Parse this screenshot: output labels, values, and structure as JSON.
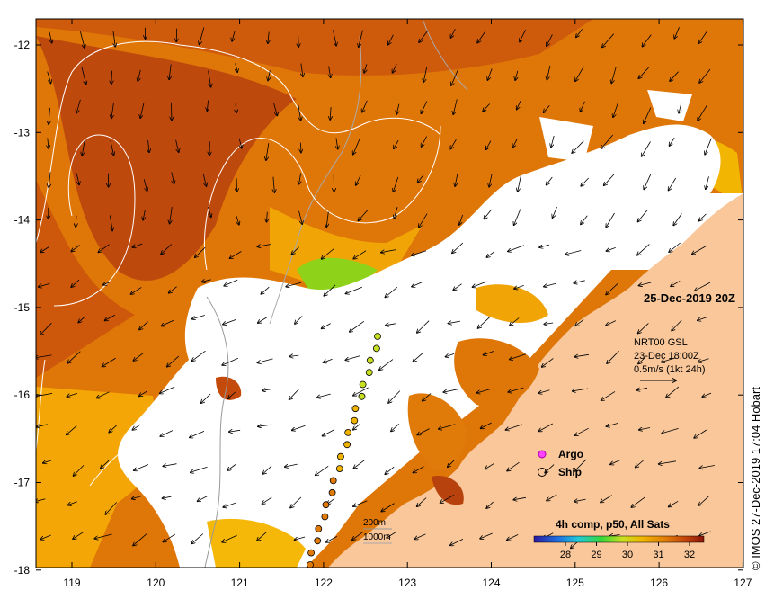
{
  "map": {
    "date_label": "25-Dec-2019 20Z",
    "current_info": {
      "line1": "NRT00 GSL",
      "line2": "23-Dec 18:00Z",
      "line3": "0.5m/s (1kt 24h)"
    },
    "legend": {
      "argo_label": "Argo",
      "ship_label": "Ship"
    },
    "depth_contours": {
      "label_200": "200m",
      "label_1000": "1000m"
    },
    "colorbar": {
      "title": "4h comp, p50, All Sats",
      "ticks": [
        "28",
        "29",
        "30",
        "31",
        "32"
      ]
    },
    "copyright": "© IMOS 27-Dec-2019 17:04 Hobart",
    "lon_ticks": [
      "119",
      "120",
      "121",
      "122",
      "123",
      "124",
      "125",
      "126",
      "127"
    ],
    "lat_ticks": [
      "-12",
      "-13",
      "-14",
      "-15",
      "-16",
      "-17",
      "-18"
    ],
    "colors": {
      "land": "#f9c79a",
      "cloud": "#ffffff",
      "sst_hot": "#b8420e",
      "sst_warm": "#d9700a",
      "sst_mid": "#ee9a05",
      "sst_cool": "#8ed21a"
    }
  }
}
